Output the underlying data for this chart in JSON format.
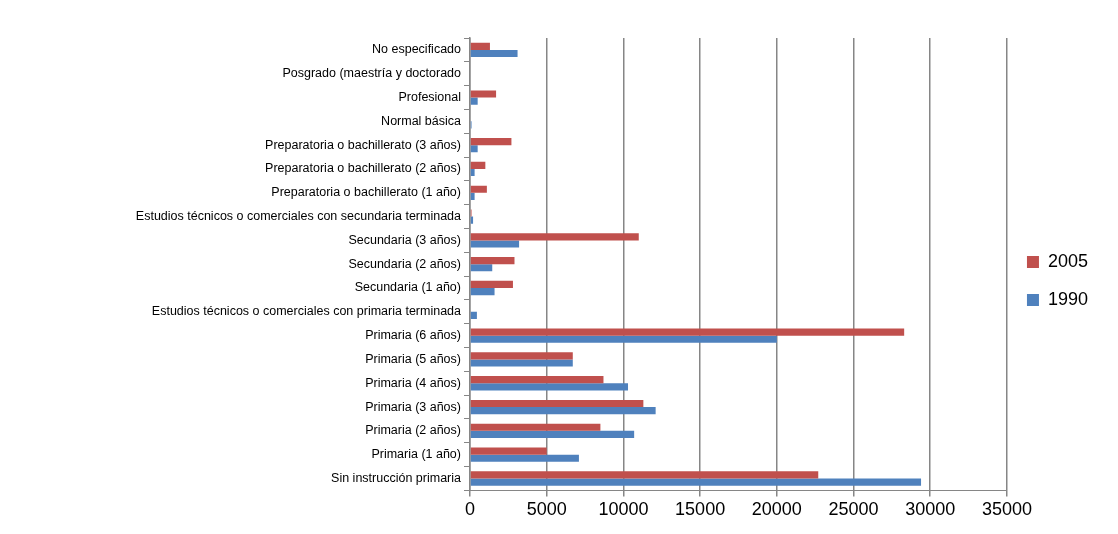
{
  "chart_data": {
    "type": "bar",
    "orientation": "horizontal",
    "categories": [
      "No especificado",
      "Posgrado (maestría y doctorado",
      "Profesional",
      "Normal básica",
      "Preparatoria o bachillerato (3 años)",
      "Preparatoria o bachillerato (2 años)",
      "Preparatoria o bachillerato (1 año)",
      "Estudios técnicos o comerciales con secundaria terminada",
      "Secundaria (3 años)",
      "Secundaria (2 años)",
      "Secundaria (1 año)",
      "Estudios técnicos o comerciales con primaria terminada",
      "Primaria (6 años)",
      "Primaria (5 años)",
      "Primaria (4 años)",
      "Primaria (3 años)",
      "Primaria (2 años)",
      "Primaria (1 año)",
      "Sin instrucción primaria"
    ],
    "series": [
      {
        "name": "2005",
        "color": "#c0504d",
        "values": [
          1300,
          0,
          1700,
          0,
          2700,
          1000,
          1100,
          100,
          11000,
          2900,
          2800,
          0,
          28300,
          6700,
          8700,
          11300,
          8500,
          5000,
          22700
        ]
      },
      {
        "name": "1990",
        "color": "#4f81bd",
        "values": [
          3100,
          0,
          500,
          100,
          500,
          300,
          300,
          200,
          3200,
          1450,
          1600,
          450,
          20000,
          6700,
          10300,
          12100,
          10700,
          7100,
          29400
        ]
      }
    ],
    "xlim": [
      0,
      35000
    ],
    "xticks": [
      0,
      5000,
      10000,
      15000,
      20000,
      25000,
      30000,
      35000
    ],
    "grid": "x",
    "legend": "right"
  }
}
